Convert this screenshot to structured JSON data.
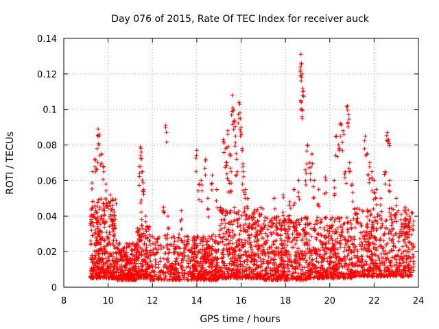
{
  "chart_data": {
    "type": "scatter",
    "title": "Day 076 of 2015, Rate Of TEC Index for receiver auck",
    "xlabel": "GPS time / hours",
    "ylabel": "ROTI / TECUs",
    "xlim": [
      8,
      24
    ],
    "ylim": [
      0,
      0.14
    ],
    "xticks": [
      "8",
      "10",
      "12",
      "14",
      "16",
      "18",
      "20",
      "22",
      "24"
    ],
    "yticks": [
      "0",
      "0.02",
      "0.04",
      "0.06",
      "0.08",
      "0.1",
      "0.12",
      "0.14"
    ],
    "grid": true,
    "legend": "none",
    "marker": "plus",
    "color": "#ff0000",
    "x_extent": [
      9.2,
      23.8
    ],
    "clusters": [
      {
        "x_range": [
          9.2,
          10.4
        ],
        "y_range": [
          0.005,
          0.05
        ],
        "n": 420
      },
      {
        "x_range": [
          10.4,
          11.3
        ],
        "y_range": [
          0.004,
          0.025
        ],
        "n": 260
      },
      {
        "x_range": [
          11.3,
          11.9
        ],
        "y_range": [
          0.005,
          0.035
        ],
        "n": 160
      },
      {
        "x_range": [
          11.9,
          13.8
        ],
        "y_range": [
          0.004,
          0.03
        ],
        "n": 300
      },
      {
        "x_range": [
          13.8,
          15.0
        ],
        "y_range": [
          0.004,
          0.03
        ],
        "n": 320
      },
      {
        "x_range": [
          15.0,
          17.0
        ],
        "y_range": [
          0.005,
          0.045
        ],
        "n": 520
      },
      {
        "x_range": [
          17.0,
          19.0
        ],
        "y_range": [
          0.004,
          0.04
        ],
        "n": 480
      },
      {
        "x_range": [
          19.0,
          21.0
        ],
        "y_range": [
          0.005,
          0.04
        ],
        "n": 480
      },
      {
        "x_range": [
          21.0,
          23.8
        ],
        "y_range": [
          0.006,
          0.045
        ],
        "n": 600
      }
    ],
    "excursions": [
      [
        9.55,
        0.089
      ],
      [
        9.6,
        0.086
      ],
      [
        9.5,
        0.078
      ],
      [
        9.4,
        0.072
      ],
      [
        9.7,
        0.075
      ],
      [
        9.3,
        0.065
      ],
      [
        9.8,
        0.068
      ],
      [
        9.9,
        0.058
      ],
      [
        10.1,
        0.052
      ],
      [
        10.2,
        0.046
      ],
      [
        11.45,
        0.079
      ],
      [
        11.5,
        0.076
      ],
      [
        11.4,
        0.068
      ],
      [
        11.55,
        0.065
      ],
      [
        11.6,
        0.055
      ],
      [
        11.5,
        0.049
      ],
      [
        11.7,
        0.04
      ],
      [
        12.6,
        0.091
      ],
      [
        12.5,
        0.045
      ],
      [
        12.7,
        0.04
      ],
      [
        13.3,
        0.043
      ],
      [
        14.0,
        0.077
      ],
      [
        14.2,
        0.06
      ],
      [
        14.4,
        0.072
      ],
      [
        14.1,
        0.058
      ],
      [
        14.5,
        0.05
      ],
      [
        14.7,
        0.063
      ],
      [
        14.9,
        0.055
      ],
      [
        15.2,
        0.083
      ],
      [
        15.3,
        0.078
      ],
      [
        15.4,
        0.088
      ],
      [
        15.35,
        0.07
      ],
      [
        15.5,
        0.075
      ],
      [
        15.6,
        0.108
      ],
      [
        15.65,
        0.1
      ],
      [
        15.7,
        0.094
      ],
      [
        15.75,
        0.085
      ],
      [
        15.8,
        0.072
      ],
      [
        15.9,
        0.104
      ],
      [
        15.95,
        0.098
      ],
      [
        16.0,
        0.09
      ],
      [
        16.1,
        0.065
      ],
      [
        16.2,
        0.055
      ],
      [
        16.3,
        0.05
      ],
      [
        15.45,
        0.06
      ],
      [
        15.55,
        0.065
      ],
      [
        16.05,
        0.078
      ],
      [
        17.5,
        0.05
      ],
      [
        17.9,
        0.052
      ],
      [
        18.2,
        0.048
      ],
      [
        18.4,
        0.055
      ],
      [
        18.7,
        0.131
      ],
      [
        18.72,
        0.126
      ],
      [
        18.75,
        0.12
      ],
      [
        18.78,
        0.112
      ],
      [
        18.7,
        0.105
      ],
      [
        18.74,
        0.1
      ],
      [
        18.6,
        0.06
      ],
      [
        18.9,
        0.066
      ],
      [
        19.0,
        0.08
      ],
      [
        19.1,
        0.07
      ],
      [
        19.2,
        0.075
      ],
      [
        19.3,
        0.06
      ],
      [
        19.5,
        0.055
      ],
      [
        19.8,
        0.062
      ],
      [
        20.3,
        0.085
      ],
      [
        20.4,
        0.08
      ],
      [
        20.5,
        0.092
      ],
      [
        20.6,
        0.088
      ],
      [
        20.8,
        0.102
      ],
      [
        20.85,
        0.097
      ],
      [
        20.9,
        0.07
      ],
      [
        20.7,
        0.065
      ],
      [
        20.2,
        0.06
      ],
      [
        21.0,
        0.058
      ],
      [
        21.6,
        0.085
      ],
      [
        21.7,
        0.075
      ],
      [
        21.8,
        0.07
      ],
      [
        21.9,
        0.065
      ],
      [
        22.0,
        0.06
      ],
      [
        22.1,
        0.055
      ],
      [
        22.3,
        0.05
      ],
      [
        22.5,
        0.065
      ],
      [
        22.6,
        0.087
      ],
      [
        22.65,
        0.083
      ],
      [
        22.7,
        0.06
      ],
      [
        23.0,
        0.05
      ],
      [
        23.4,
        0.045
      ],
      [
        23.6,
        0.04
      ]
    ]
  }
}
